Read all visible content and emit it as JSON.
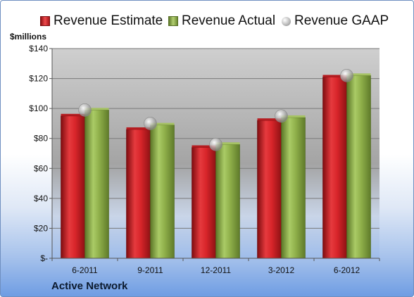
{
  "legend": {
    "estimate_label": "Revenue Estimate",
    "actual_label": "Revenue Actual",
    "gaap_label": "Revenue GAAP"
  },
  "units_label": "$millions",
  "company_label": "Active Network",
  "colors": {
    "estimate": "#d8252a",
    "actual": "#8faf4a",
    "gaap": "#a9a9a9"
  },
  "chart_data": {
    "type": "bar",
    "categories": [
      "6-2011",
      "9-2011",
      "12-2011",
      "3-2012",
      "6-2012"
    ],
    "series": [
      {
        "name": "Revenue Estimate",
        "values": [
          95,
          86,
          74,
          92,
          121
        ]
      },
      {
        "name": "Revenue Actual",
        "values": [
          99,
          89,
          76,
          94,
          122
        ]
      },
      {
        "name": "Revenue GAAP",
        "values": [
          99,
          90,
          76,
          95,
          122
        ]
      }
    ],
    "ylim": [
      0,
      140
    ],
    "yticks": [
      0,
      20,
      40,
      60,
      80,
      100,
      120,
      140
    ],
    "ytick_labels": [
      "$-",
      "$20",
      "$40",
      "$60",
      "$80",
      "$100",
      "$120",
      "$140"
    ],
    "ylabel": "$millions",
    "grid": true,
    "legend_position": "top"
  }
}
